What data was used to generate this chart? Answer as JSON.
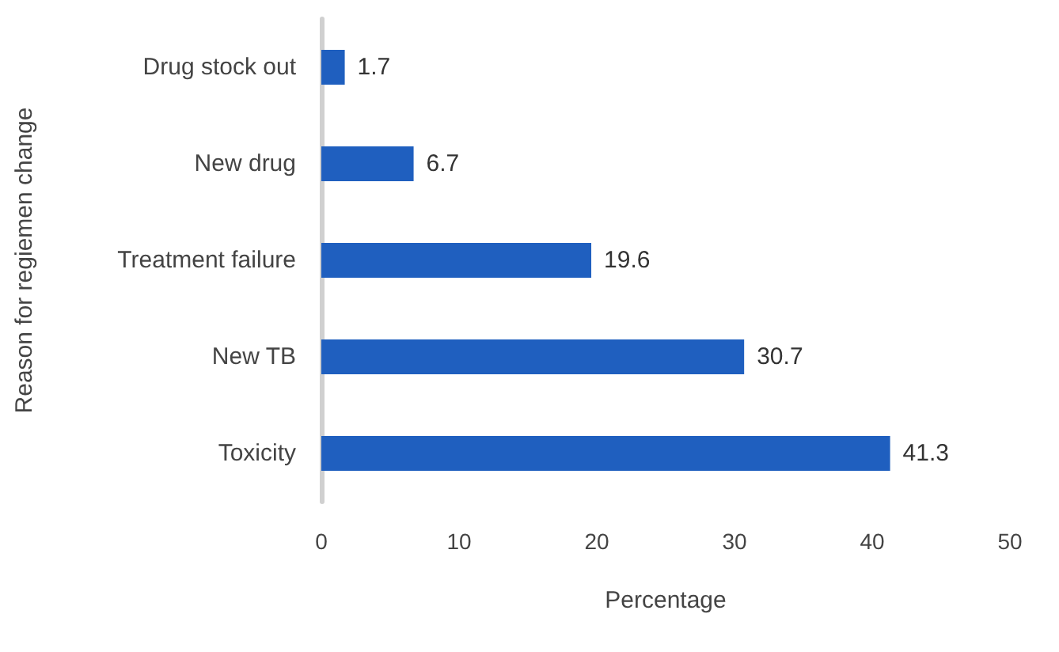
{
  "chart_data": {
    "type": "bar",
    "orientation": "horizontal",
    "xlabel": "Percentage",
    "ylabel": "Reason for regiemen change",
    "categories": [
      "Drug stock out",
      "New drug",
      "Treatment failure",
      "New TB",
      "Toxicity"
    ],
    "values": [
      1.7,
      6.7,
      19.6,
      30.7,
      41.3
    ],
    "color": "#1f5fbf",
    "xlim": [
      0,
      50
    ],
    "xticks": [
      0,
      10,
      20,
      30,
      40,
      50
    ],
    "data_labels": true,
    "grid": false
  }
}
